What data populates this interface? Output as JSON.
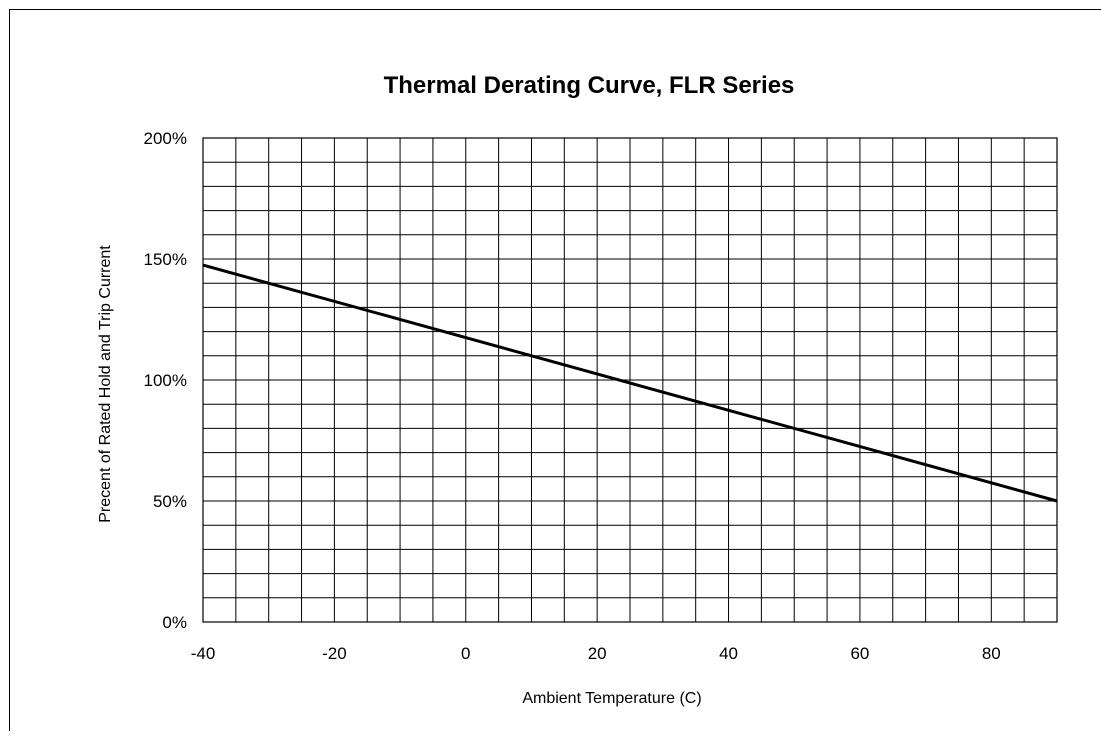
{
  "chart_data": {
    "type": "line",
    "title": "Thermal Derating Curve, FLR Series",
    "xlabel": "Ambient Temperature (C)",
    "ylabel": "Precent of Rated Hold and Trip Current",
    "xlim": [
      -40,
      90
    ],
    "ylim": [
      0,
      200
    ],
    "x_ticks": [
      -40,
      -20,
      0,
      20,
      40,
      60,
      80
    ],
    "x_tick_labels": [
      "-40",
      "-20",
      "0",
      "20",
      "40",
      "60",
      "80"
    ],
    "y_ticks": [
      0,
      50,
      100,
      150,
      200
    ],
    "y_tick_labels": [
      "0%",
      "50%",
      "100%",
      "150%",
      "200%"
    ],
    "grid": true,
    "x_grid_step": 5,
    "y_grid_step": 10,
    "series": [
      {
        "x": [
          -40,
          90
        ],
        "y": [
          147.5,
          50
        ],
        "color": "#000000"
      }
    ]
  }
}
